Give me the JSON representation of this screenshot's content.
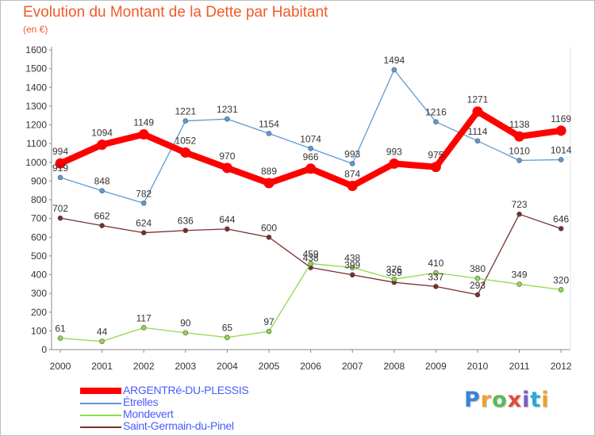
{
  "header": {
    "title": "Evolution du Montant de la Dette par Habitant",
    "subtitle": "(en €)"
  },
  "logo": {
    "text": [
      "P",
      "r",
      "o",
      "x",
      "i",
      "t",
      "i"
    ],
    "colors": [
      "#3b82d6",
      "#f0a030",
      "#5bb85b",
      "#e04b3a",
      "#7b5cc4",
      "#2aa8d8",
      "#f0a030"
    ]
  },
  "chart_data": {
    "type": "line",
    "title": "Evolution du Montant de la Dette par Habitant",
    "subtitle": "(en €)",
    "x": [
      "2000",
      "2001",
      "2002",
      "2003",
      "2004",
      "2005",
      "2006",
      "2007",
      "2008",
      "2009",
      "2010",
      "2011",
      "2012"
    ],
    "ylim": [
      0,
      1600
    ],
    "yticks": [
      0,
      100,
      200,
      300,
      400,
      500,
      600,
      700,
      800,
      900,
      1000,
      1100,
      1200,
      1300,
      1400,
      1500,
      1600
    ],
    "grid": false,
    "legend_position": "bottom-left",
    "series": [
      {
        "name": "ARGENTRé-DU-PLESSIS",
        "color": "#ff0000",
        "bold": true,
        "values": [
          994,
          1094,
          1149,
          1052,
          970,
          889,
          966,
          874,
          993,
          975,
          1271,
          1138,
          1169
        ]
      },
      {
        "name": "Étrelles",
        "color": "#5b9bd5",
        "bold": false,
        "values": [
          919,
          848,
          782,
          1221,
          1231,
          1154,
          1074,
          993,
          1494,
          1216,
          1114,
          1010,
          1014
        ]
      },
      {
        "name": "Mondevert",
        "color": "#8fd94b",
        "bold": false,
        "values": [
          61,
          44,
          117,
          90,
          65,
          97,
          459,
          438,
          376,
          410,
          380,
          349,
          320
        ]
      },
      {
        "name": "Saint-Germain-du-Pinel",
        "color": "#7a2c2c",
        "bold": false,
        "values": [
          702,
          662,
          624,
          636,
          644,
          600,
          438,
          399,
          359,
          337,
          293,
          723,
          646
        ]
      }
    ]
  }
}
